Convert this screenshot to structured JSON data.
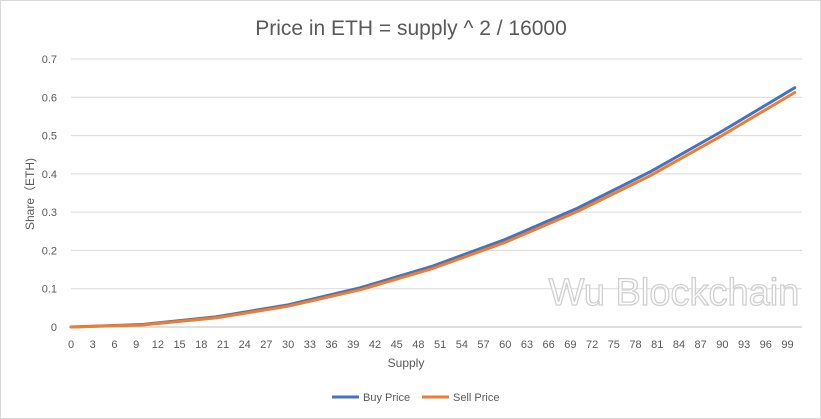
{
  "chart_data": {
    "type": "line",
    "title": "Price in ETH = supply ^ 2 / 16000",
    "xlabel": "Supply",
    "ylabel": "Share（ETH)",
    "xlim": [
      0,
      100
    ],
    "ylim": [
      0,
      0.7
    ],
    "y_ticks": [
      "0",
      "0.1",
      "0.2",
      "0.3",
      "0.4",
      "0.5",
      "0.6",
      "0.7"
    ],
    "x_ticks": [
      "0",
      "3",
      "6",
      "9",
      "12",
      "15",
      "18",
      "21",
      "24",
      "27",
      "30",
      "33",
      "36",
      "39",
      "42",
      "45",
      "48",
      "51",
      "54",
      "57",
      "60",
      "63",
      "66",
      "69",
      "72",
      "75",
      "78",
      "81",
      "84",
      "87",
      "90",
      "93",
      "96",
      "99"
    ],
    "grid": "horizontal",
    "legend_position": "bottom",
    "watermark": "Wu Blockchain",
    "series": [
      {
        "name": "Buy Price",
        "color": "#4472c4",
        "x": [
          0,
          10,
          20,
          30,
          40,
          50,
          60,
          70,
          80,
          90,
          100
        ],
        "values": [
          0.0,
          0.0069,
          0.0263,
          0.0581,
          0.1026,
          0.1594,
          0.2288,
          0.3106,
          0.405,
          0.5119,
          0.625
        ]
      },
      {
        "name": "Sell Price",
        "color": "#ed7d31",
        "x": [
          0,
          10,
          20,
          30,
          40,
          50,
          60,
          70,
          80,
          90,
          100
        ],
        "values": [
          0.0,
          0.0056,
          0.0238,
          0.0544,
          0.0975,
          0.1531,
          0.2213,
          0.3019,
          0.395,
          0.5006,
          0.6125
        ]
      }
    ]
  }
}
